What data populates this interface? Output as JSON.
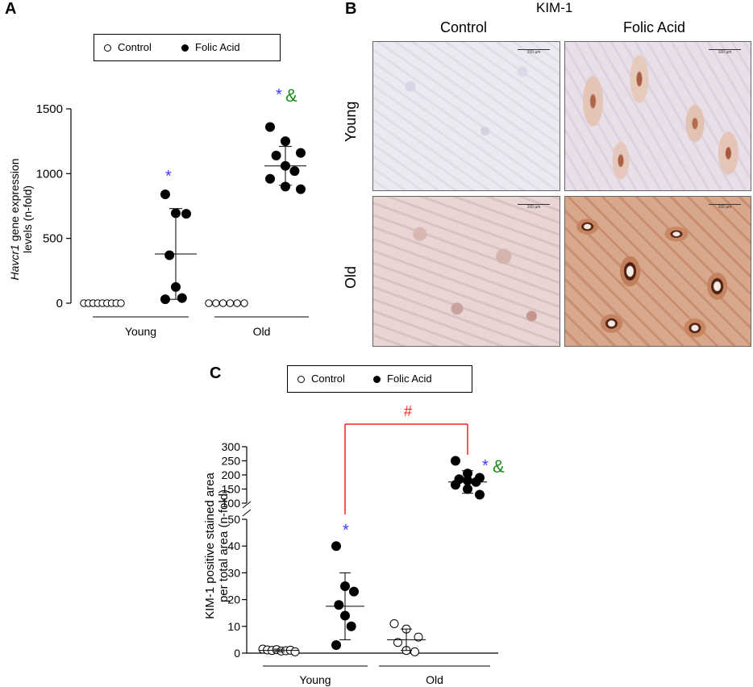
{
  "panels": {
    "a": {
      "letter": "A"
    },
    "b": {
      "letter": "B",
      "title": "KIM-1",
      "columns": [
        "Control",
        "Folic Acid"
      ],
      "rows": [
        "Young",
        "Old"
      ],
      "scale_label": "100 µm"
    },
    "c": {
      "letter": "C"
    }
  },
  "legend": {
    "control": "Control",
    "folic_acid": "Folic Acid"
  },
  "colors": {
    "star": "#3a3aff",
    "amp": "#1a8a1a",
    "hash": "#ff2020",
    "bracket": "#ff2020"
  },
  "chart_data": [
    {
      "type": "scatter",
      "panel": "A",
      "ylabel_italic": "Havcr1",
      "ylabel_rest": " gene expression",
      "ylabel_line2": "levels (n-fold)",
      "yticks": [
        "0",
        "500",
        "1000",
        "1500"
      ],
      "ylim": [
        0,
        1500
      ],
      "groups": [
        "Young",
        "Old"
      ],
      "annotations": [
        {
          "group": "Young-Folic",
          "text": "*"
        },
        {
          "group": "Old-Folic",
          "star": "*",
          "amp": "&"
        }
      ],
      "series": [
        {
          "name": "Control",
          "group": "Young",
          "values": [
            0,
            0,
            0,
            0,
            0,
            0,
            0,
            0,
            0
          ],
          "mean": null,
          "sd": null
        },
        {
          "name": "Folic Acid",
          "group": "Young",
          "values": [
            840,
            695,
            690,
            370,
            125,
            40,
            30
          ],
          "mean": 380,
          "sd": 350
        },
        {
          "name": "Control",
          "group": "Old",
          "values": [
            0,
            0,
            0,
            0,
            0,
            0
          ],
          "mean": null,
          "sd": null
        },
        {
          "name": "Folic Acid",
          "group": "Old",
          "values": [
            1360,
            1250,
            1160,
            1140,
            1060,
            1020,
            960,
            900,
            880
          ],
          "mean": 1060,
          "sd": 150
        }
      ]
    },
    {
      "type": "scatter",
      "panel": "C",
      "ylabel_line1": "KIM-1 positive stained area",
      "ylabel_line2": "per total area (n-fold)",
      "yticks_lower": [
        "0",
        "10",
        "20",
        "30",
        "40",
        "50"
      ],
      "yticks_upper": [
        "100",
        "150",
        "200",
        "250",
        "300"
      ],
      "ylim_lower": [
        0,
        50
      ],
      "ylim_upper": [
        100,
        300
      ],
      "groups": [
        "Young",
        "Old"
      ],
      "bracket_label": "#",
      "annotations": [
        {
          "group": "Young-Folic",
          "text": "*"
        },
        {
          "group": "Old-Folic",
          "star": "*",
          "amp": "&"
        }
      ],
      "series": [
        {
          "name": "Control",
          "group": "Young",
          "values": [
            1.5,
            1.2,
            1.0,
            1.3,
            0.8,
            0.9,
            1.1,
            0.5
          ],
          "mean": 1,
          "sd": 0.5
        },
        {
          "name": "Folic Acid",
          "group": "Young",
          "values": [
            40,
            25,
            23,
            18,
            14,
            10,
            3
          ],
          "mean": 17.5,
          "sd": 12.5
        },
        {
          "name": "Control",
          "group": "Old",
          "values": [
            11,
            9,
            6,
            4,
            1,
            0.5
          ],
          "mean": 5,
          "sd": 4
        },
        {
          "name": "Folic Acid",
          "group": "Old",
          "values": [
            250,
            205,
            190,
            185,
            180,
            175,
            165,
            150,
            130
          ],
          "mean": 175,
          "sd": 40
        }
      ]
    }
  ]
}
